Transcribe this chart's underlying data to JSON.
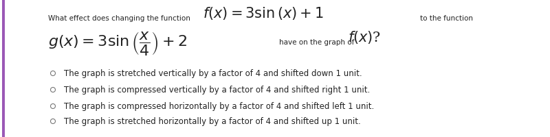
{
  "background_color": "#ffffff",
  "border_left_color": "#9b59b6",
  "text_color": "#222222",
  "circle_color": "#777777",
  "line1_small_left": "What effect does changing the function",
  "line1_formula": "$f\\left(x\\right) = 3\\sin\\left(x\\right) + 1$",
  "line1_small_right": "to the function",
  "line2_formula": "$g\\left(x\\right) = 3\\sin\\left(\\dfrac{x}{4}\\right) + 2$",
  "line2_small": "have on the graph of",
  "line2_fx": "$f\\left(x\\right)$?",
  "options": [
    "The graph is stretched vertically by a factor of 4 and shifted down 1 unit.",
    "The graph is compressed vertically by a factor of 4 and shifted right 1 unit.",
    "The graph is compressed horizontally by a factor of 4 and shifted left 1 unit.",
    "The graph is stretched horizontally by a factor of 4 and shifted up 1 unit."
  ],
  "fig_width": 8.0,
  "fig_height": 2.01,
  "dpi": 100,
  "small_fs": 7.5,
  "large_fs": 15,
  "option_fs": 8.5
}
